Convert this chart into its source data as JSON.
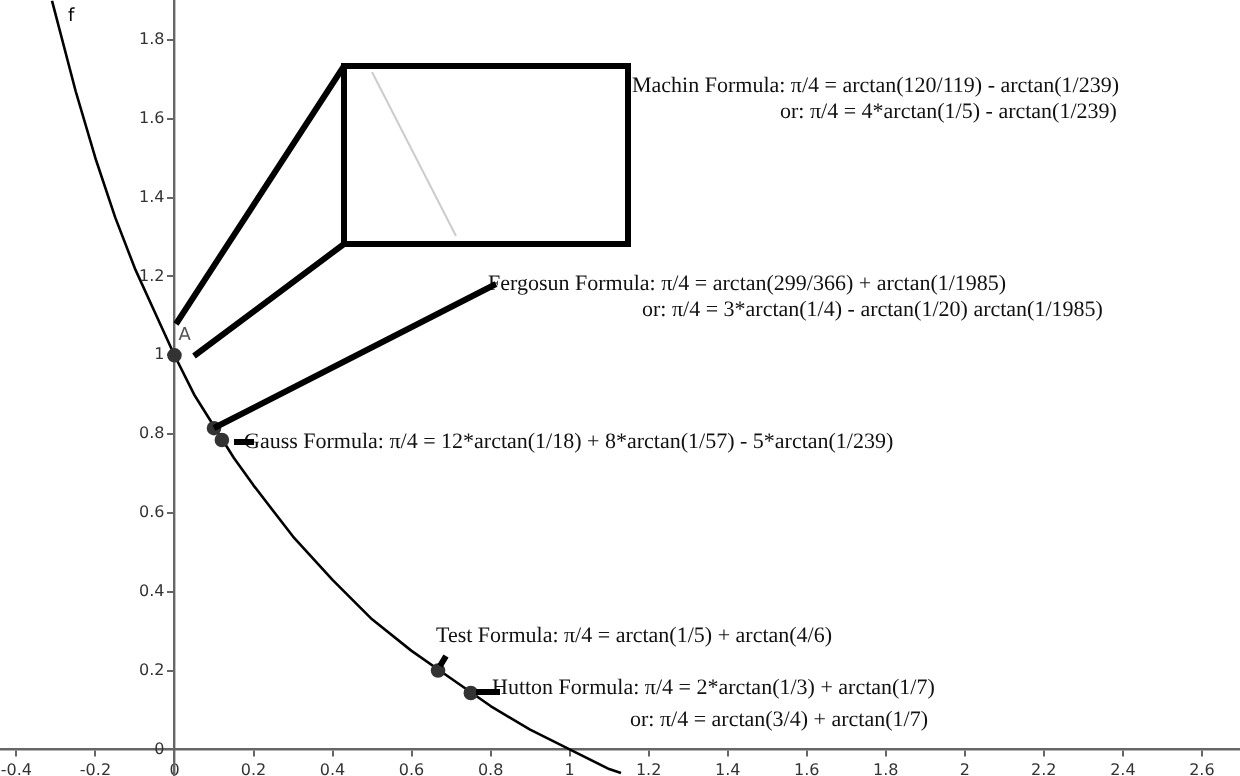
{
  "chart_data": {
    "type": "line",
    "xlim": [
      -0.44,
      2.7
    ],
    "ylim": [
      -0.066,
      1.9
    ],
    "xticks": [
      -0.4,
      -0.2,
      0,
      0.2,
      0.4,
      0.6,
      0.8,
      1,
      1.2,
      1.4,
      1.6,
      1.8,
      2,
      2.2,
      2.4,
      2.6
    ],
    "yticks": [
      0,
      0.2,
      0.4,
      0.6,
      0.8,
      1,
      1.2,
      1.4,
      1.6,
      1.8
    ],
    "series": [
      {
        "name": "f",
        "type": "line",
        "color": "#000000",
        "marker": "none",
        "x": [
          -0.31,
          -0.25,
          -0.2,
          -0.15,
          -0.1,
          -0.05,
          0,
          0.05,
          0.1,
          0.15,
          0.2,
          0.3,
          0.4,
          0.5,
          0.6,
          0.7,
          0.8,
          0.9,
          1,
          1.1,
          1.13
        ],
        "values": [
          1.9,
          1.67,
          1.5,
          1.35,
          1.22,
          1.11,
          1,
          0.9,
          0.82,
          0.74,
          0.67,
          0.54,
          0.43,
          0.33,
          0.25,
          0.18,
          0.11,
          0.05,
          0,
          -0.05,
          -0.06
        ]
      },
      {
        "type": "scatter",
        "color": "#333333",
        "marker": "circle",
        "x": [
          0,
          0.1,
          0.12,
          0.667,
          0.75
        ],
        "values": [
          1,
          0.815,
          0.785,
          0.2,
          0.143
        ]
      }
    ],
    "annotations": [
      "Machin Formula: π/4 = arctan(120/119) - arctan(1/239)",
      "or: π/4 = 4*arctan(1/5) - arctan(1/239)",
      "Fergosun Formula: π/4 = arctan(299/366) + arctan(1/1985)",
      "or: π/4 = 3*arctan(1/4) - arctan(1/20) arctan(1/1985)",
      "Gauss Formula: π/4 = 12*arctan(1/18) + 8*arctan(1/57) - 5*arctan(1/239)",
      "Test Formula: π/4 = arctan(1/5) + arctan(4/6)",
      "Hutton Formula: π/4 = 2*arctan(1/3) + arctan(1/7)",
      "or: π/4 = arctan(3/4) + arctan(1/7)",
      {
        "text": "A",
        "x": 0,
        "y": 1
      }
    ]
  }
}
